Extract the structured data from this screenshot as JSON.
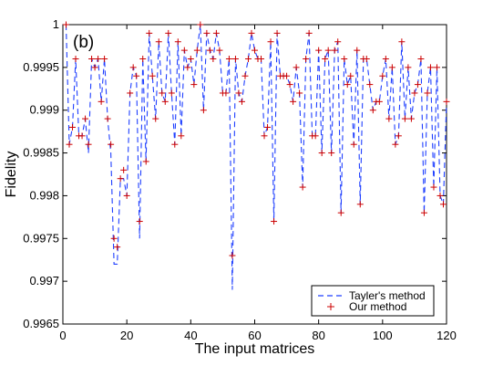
{
  "chart_data": {
    "type": "line",
    "panel_label": "(b)",
    "title": "",
    "xlabel": "The input matrices",
    "ylabel": "Fidelity",
    "xlim": [
      0,
      120
    ],
    "ylim": [
      0.9965,
      1
    ],
    "x_ticks": [
      0,
      20,
      40,
      60,
      80,
      100,
      120
    ],
    "y_ticks": [
      0.9965,
      0.997,
      0.9975,
      0.998,
      0.9985,
      0.999,
      0.9995,
      1
    ],
    "y_tick_labels": [
      "0.9965",
      "0.997",
      "0.9975",
      "0.998",
      "0.9985",
      "0.999",
      "0.9995",
      "1"
    ],
    "grid": false,
    "legend_position": "bottom-right",
    "x": [
      1,
      2,
      3,
      4,
      5,
      6,
      7,
      8,
      9,
      10,
      11,
      12,
      13,
      14,
      15,
      16,
      17,
      18,
      19,
      20,
      21,
      22,
      23,
      24,
      25,
      26,
      27,
      28,
      29,
      30,
      31,
      32,
      33,
      34,
      35,
      36,
      37,
      38,
      39,
      40,
      41,
      42,
      43,
      44,
      45,
      46,
      47,
      48,
      49,
      50,
      51,
      52,
      53,
      54,
      55,
      56,
      57,
      58,
      59,
      60,
      61,
      62,
      63,
      64,
      65,
      66,
      67,
      68,
      69,
      70,
      71,
      72,
      73,
      74,
      75,
      76,
      77,
      78,
      79,
      80,
      81,
      82,
      83,
      84,
      85,
      86,
      87,
      88,
      89,
      90,
      91,
      92,
      93,
      94,
      95,
      96,
      97,
      98,
      99,
      100,
      101,
      102,
      103,
      104,
      105,
      106,
      107,
      108,
      109,
      110,
      111,
      112,
      113,
      114,
      115,
      116,
      117,
      118,
      119,
      120
    ],
    "series": [
      {
        "name": "Tayler's method",
        "style": "dashed",
        "color": "#1f3fff",
        "values": [
          1.0,
          0.9986,
          0.9988,
          0.9996,
          0.9987,
          0.9987,
          0.9989,
          0.9985,
          0.9996,
          0.9995,
          0.9996,
          0.9991,
          0.9996,
          0.9989,
          0.9985,
          0.9972,
          0.9972,
          0.9982,
          0.9982,
          0.998,
          0.9992,
          0.9995,
          0.9994,
          0.9975,
          0.9996,
          0.9984,
          0.9999,
          0.9994,
          0.9989,
          0.9998,
          0.9992,
          0.9991,
          0.9999,
          0.9992,
          0.9986,
          0.9998,
          0.9987,
          0.9997,
          0.9995,
          0.9996,
          0.9993,
          0.9997,
          1.0,
          0.999,
          0.9999,
          0.9997,
          0.9996,
          0.9999,
          0.9997,
          0.9992,
          0.9992,
          0.9996,
          0.9969,
          0.9996,
          0.9992,
          0.9991,
          0.9994,
          0.9996,
          0.9999,
          0.9997,
          0.9996,
          0.9996,
          0.9987,
          0.9988,
          0.9998,
          0.9977,
          0.9999,
          0.9994,
          0.9994,
          0.9994,
          0.9993,
          0.9991,
          0.9995,
          0.9992,
          0.9981,
          0.9996,
          0.9999,
          0.9987,
          0.9987,
          0.9997,
          0.9985,
          0.9996,
          0.9997,
          0.9985,
          0.9997,
          0.9998,
          0.9978,
          0.9996,
          0.9993,
          0.9994,
          0.9986,
          0.9997,
          0.9979,
          0.9996,
          0.9996,
          0.9993,
          0.999,
          0.9991,
          0.9991,
          0.9994,
          0.9996,
          0.9989,
          0.9995,
          0.9986,
          0.9987,
          0.9998,
          0.9989,
          0.9995,
          0.9989,
          0.9992,
          0.9993,
          0.9996,
          0.9978,
          0.9992,
          0.9995,
          0.9981,
          0.9995,
          0.998,
          0.9979,
          0.9991
        ]
      },
      {
        "name": "Our method",
        "style": "plus-marker",
        "color": "#cc0000",
        "values": [
          1.0,
          0.9986,
          0.9988,
          0.9996,
          0.9987,
          0.9987,
          0.9989,
          0.9986,
          0.9996,
          0.9995,
          0.9996,
          0.9991,
          0.9996,
          0.9989,
          0.9986,
          0.9975,
          0.9974,
          0.9982,
          0.9983,
          0.998,
          0.9992,
          0.9995,
          0.9994,
          0.9977,
          0.9996,
          0.9984,
          0.9999,
          0.9994,
          0.9989,
          0.9998,
          0.9992,
          0.9991,
          0.9999,
          0.9992,
          0.9986,
          0.9998,
          0.9987,
          0.9997,
          0.9995,
          0.9996,
          0.9993,
          0.9997,
          1.0,
          0.999,
          0.9999,
          0.9997,
          0.9996,
          0.9999,
          0.9997,
          0.9992,
          0.9992,
          0.9996,
          0.9973,
          0.9996,
          0.9992,
          0.9991,
          0.9994,
          0.9996,
          0.9999,
          0.9997,
          0.9996,
          0.9996,
          0.9987,
          0.9988,
          0.9998,
          0.9977,
          0.9999,
          0.9994,
          0.9994,
          0.9994,
          0.9993,
          0.9991,
          0.9995,
          0.9992,
          0.9981,
          0.9996,
          0.9999,
          0.9987,
          0.9987,
          0.9997,
          0.9985,
          0.9996,
          0.9997,
          0.9985,
          0.9997,
          0.9998,
          0.9978,
          0.9996,
          0.9993,
          0.9994,
          0.9986,
          0.9997,
          0.9979,
          0.9996,
          0.9996,
          0.9993,
          0.999,
          0.9991,
          0.9991,
          0.9994,
          0.9996,
          0.9989,
          0.9995,
          0.9986,
          0.9987,
          0.9998,
          0.9989,
          0.9995,
          0.9989,
          0.9992,
          0.9993,
          0.9996,
          0.9978,
          0.9992,
          0.9995,
          0.9981,
          0.9995,
          0.998,
          0.9979,
          0.9991
        ]
      }
    ]
  }
}
